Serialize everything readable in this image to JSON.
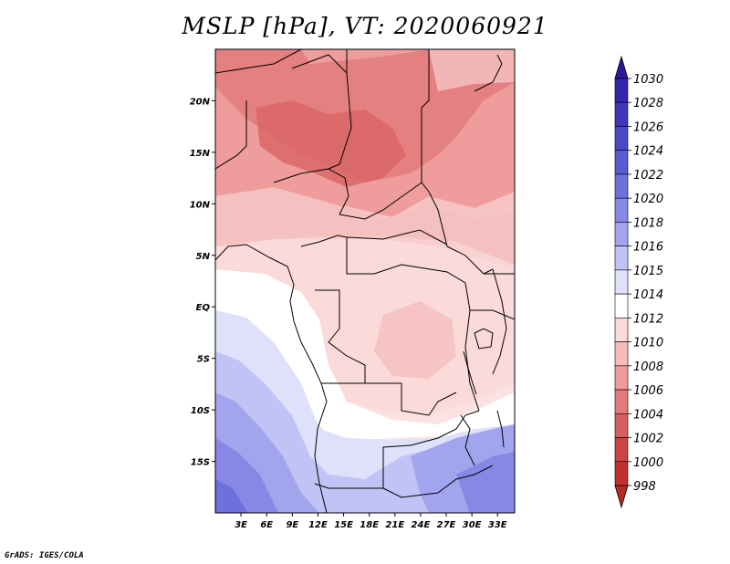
{
  "title": "MSLP [hPa], VT: 2020060921",
  "credit": "GrADS: IGES/COLA",
  "map": {
    "lon_ticks": [
      "3E",
      "6E",
      "9E",
      "12E",
      "15E",
      "18E",
      "21E",
      "24E",
      "27E",
      "30E",
      "33E"
    ],
    "lat_ticks": [
      "20N",
      "15N",
      "10N",
      "5N",
      "EQ",
      "5S",
      "10S",
      "15S"
    ],
    "lon_range": [
      0,
      35
    ],
    "lat_range": [
      -20,
      25
    ]
  },
  "colorbar": {
    "labels": [
      "1030",
      "1028",
      "1026",
      "1024",
      "1022",
      "1020",
      "1018",
      "1016",
      "1015",
      "1014",
      "1012",
      "1010",
      "1008",
      "1006",
      "1004",
      "1002",
      "1000",
      "998"
    ],
    "top_arrow_color": "#2a1a9e",
    "bottom_arrow_color": "#b52a1e",
    "bins": [
      "#2a1a9e",
      "#3425ad",
      "#3f36bb",
      "#4a48c7",
      "#5a5bd2",
      "#6e70dc",
      "#8788e5",
      "#a2a5ee",
      "#c0c3f5",
      "#dfe0fa",
      "#ffffff",
      "#fbdada",
      "#f6bcbc",
      "#ee9c9c",
      "#e37b7b",
      "#d85f5f",
      "#cc4444",
      "#bf3030"
    ]
  }
}
